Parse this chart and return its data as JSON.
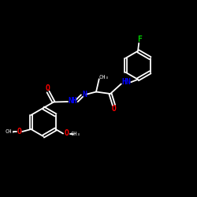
{
  "background_color": "#000000",
  "bond_color": "#ffffff",
  "atom_colors": {
    "N": "#0000ff",
    "O": "#ff0000",
    "F": "#00cc00",
    "C": "#ffffff"
  },
  "figsize": [
    2.5,
    2.5
  ],
  "dpi": 100,
  "xlim": [
    0,
    10
  ],
  "ylim": [
    0,
    10
  ],
  "lw": 1.3,
  "fs": 6.5
}
